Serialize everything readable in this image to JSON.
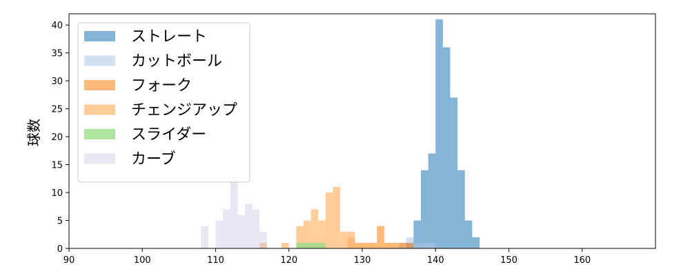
{
  "chart_data": {
    "type": "histogram",
    "ylabel": "球数",
    "xlim": [
      90,
      170
    ],
    "ylim": [
      0,
      42
    ],
    "xticks": [
      90,
      100,
      110,
      120,
      130,
      140,
      150,
      160
    ],
    "yticks": [
      0,
      5,
      10,
      15,
      20,
      25,
      30,
      35,
      40
    ],
    "bin_width": 1,
    "legend_position": "upper-left",
    "series": [
      {
        "name": "ストレート",
        "color": "#1f77b4",
        "alpha": 0.55,
        "bins": [
          [
            136,
            1
          ],
          [
            137,
            5
          ],
          [
            138,
            14
          ],
          [
            139,
            17
          ],
          [
            140,
            41
          ],
          [
            141,
            36
          ],
          [
            142,
            27
          ],
          [
            143,
            14
          ],
          [
            144,
            5
          ],
          [
            145,
            2
          ]
        ]
      },
      {
        "name": "カットボール",
        "color": "#aec7e8",
        "alpha": 0.55,
        "bins": [
          [
            135,
            1
          ],
          [
            136,
            2
          ],
          [
            137,
            1
          ],
          [
            138,
            1
          ],
          [
            139,
            1
          ]
        ]
      },
      {
        "name": "フォーク",
        "color": "#ff7f0e",
        "alpha": 0.55,
        "bins": [
          [
            128,
            2
          ],
          [
            129,
            1
          ],
          [
            130,
            1
          ],
          [
            131,
            1
          ],
          [
            132,
            4
          ],
          [
            133,
            1
          ],
          [
            134,
            1
          ],
          [
            135,
            1
          ],
          [
            136,
            1
          ]
        ]
      },
      {
        "name": "チェンジアップ",
        "color": "#ffbb78",
        "alpha": 0.75,
        "bins": [
          [
            116,
            1
          ],
          [
            119,
            1
          ],
          [
            121,
            4
          ],
          [
            122,
            5
          ],
          [
            123,
            7
          ],
          [
            124,
            5
          ],
          [
            125,
            10
          ],
          [
            126,
            11
          ],
          [
            127,
            3
          ],
          [
            128,
            3
          ],
          [
            129,
            1
          ],
          [
            130,
            1
          ],
          [
            131,
            1
          ],
          [
            132,
            1
          ],
          [
            133,
            1
          ],
          [
            134,
            1
          ]
        ]
      },
      {
        "name": "スライダー",
        "color": "#98df8a",
        "alpha": 0.8,
        "bins": [
          [
            121,
            1
          ],
          [
            122,
            1
          ],
          [
            123,
            1
          ],
          [
            124,
            1
          ]
        ]
      },
      {
        "name": "カーブ",
        "color": "#c5c5df",
        "alpha": 0.4,
        "bins": [
          [
            108,
            4
          ],
          [
            110,
            5
          ],
          [
            111,
            7
          ],
          [
            112,
            13
          ],
          [
            113,
            6
          ],
          [
            114,
            8
          ],
          [
            115,
            7
          ],
          [
            116,
            3
          ]
        ]
      }
    ]
  }
}
